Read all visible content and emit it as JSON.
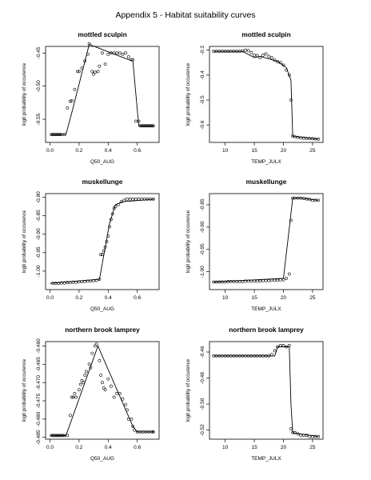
{
  "page_title": "Appendix 5 - Habitat suitability curves",
  "y_axis_label": "logit probability of occurence",
  "chart_data": [
    {
      "type": "line",
      "title": "mottled sculpin",
      "xlabel": "Q50_AUG",
      "ylabel": "logit probability of occurence",
      "xlim": [
        -0.03,
        0.75
      ],
      "ylim": [
        -0.585,
        -0.44
      ],
      "xticks": [
        0.0,
        0.2,
        0.4,
        0.6
      ],
      "xtick_labels": [
        "0.0",
        "0.2",
        "0.4",
        "0.6"
      ],
      "yticks": [
        -0.55,
        -0.5,
        -0.45
      ],
      "ytick_labels": [
        "-0.55",
        "-0.50",
        "-0.45"
      ],
      "grid": false,
      "series": [
        {
          "style": "points",
          "x": [
            0.01,
            0.02,
            0.03,
            0.04,
            0.05,
            0.06,
            0.07,
            0.08,
            0.1,
            0.12,
            0.14,
            0.15,
            0.17,
            0.19,
            0.2,
            0.22,
            0.24,
            0.26,
            0.27,
            0.29,
            0.3,
            0.31,
            0.33,
            0.34,
            0.36,
            0.38,
            0.4,
            0.42,
            0.44,
            0.46,
            0.48,
            0.5,
            0.52,
            0.54,
            0.56,
            0.57,
            0.59,
            0.61,
            0.62,
            0.63,
            0.64,
            0.65,
            0.66,
            0.67,
            0.68,
            0.69,
            0.7,
            0.71
          ],
          "y": [
            -0.573,
            -0.573,
            -0.573,
            -0.573,
            -0.573,
            -0.573,
            -0.573,
            -0.573,
            -0.573,
            -0.533,
            -0.523,
            -0.522,
            -0.505,
            -0.478,
            -0.478,
            -0.473,
            -0.462,
            -0.452,
            -0.436,
            -0.478,
            -0.482,
            -0.479,
            -0.478,
            -0.47,
            -0.45,
            -0.467,
            -0.452,
            -0.45,
            -0.45,
            -0.45,
            -0.45,
            -0.452,
            -0.45,
            -0.456,
            -0.46,
            -0.46,
            -0.553,
            -0.553,
            -0.56,
            -0.56,
            -0.56,
            -0.56,
            -0.56,
            -0.56,
            -0.56,
            -0.56,
            -0.56,
            -0.56
          ]
        },
        {
          "style": "line",
          "x": [
            0.0,
            0.11,
            0.15,
            0.27,
            0.54,
            0.57,
            0.61,
            0.72
          ],
          "y": [
            -0.573,
            -0.573,
            -0.54,
            -0.437,
            -0.46,
            -0.462,
            -0.56,
            -0.56
          ]
        }
      ]
    },
    {
      "type": "line",
      "title": "mottled sculpin",
      "xlabel": "TEMP_JULX",
      "ylabel": "logit probability of occurence",
      "xlim": [
        7.3,
        26.8
      ],
      "ylim": [
        -0.67,
        -0.285
      ],
      "xticks": [
        10,
        15,
        20,
        25
      ],
      "xtick_labels": [
        "10",
        "15",
        "20",
        "25"
      ],
      "yticks": [
        -0.6,
        -0.5,
        -0.4,
        -0.3
      ],
      "ytick_labels": [
        "-0.6",
        "-0.5",
        "-0.4",
        "-0.3"
      ],
      "grid": false,
      "series": [
        {
          "style": "points",
          "x": [
            8,
            8.5,
            9,
            9.5,
            10,
            10.5,
            11,
            11.5,
            12,
            12.5,
            13,
            13.5,
            14,
            14.5,
            15,
            15.5,
            16,
            16.5,
            17,
            17.5,
            18,
            18.5,
            19,
            19.5,
            20,
            20.5,
            21,
            21.3,
            21.6,
            22,
            22.5,
            23,
            23.5,
            24,
            24.5,
            25,
            25.5,
            26
          ],
          "y": [
            -0.305,
            -0.305,
            -0.305,
            -0.305,
            -0.305,
            -0.305,
            -0.305,
            -0.305,
            -0.305,
            -0.305,
            -0.303,
            -0.3,
            -0.302,
            -0.31,
            -0.32,
            -0.322,
            -0.33,
            -0.32,
            -0.315,
            -0.325,
            -0.33,
            -0.34,
            -0.347,
            -0.35,
            -0.36,
            -0.38,
            -0.4,
            -0.5,
            -0.645,
            -0.648,
            -0.65,
            -0.652,
            -0.653,
            -0.654,
            -0.655,
            -0.655,
            -0.656,
            -0.657
          ]
        },
        {
          "style": "line",
          "x": [
            8,
            13,
            15,
            16,
            19,
            20.5,
            21.3,
            21.6,
            26
          ],
          "y": [
            -0.305,
            -0.305,
            -0.33,
            -0.325,
            -0.345,
            -0.37,
            -0.42,
            -0.645,
            -0.657
          ]
        }
      ]
    },
    {
      "type": "line",
      "title": "muskellunge",
      "xlabel": "Q50_AUG",
      "ylabel": "logit probability of occurence",
      "xlim": [
        -0.03,
        0.75
      ],
      "ylim": [
        -1.05,
        -0.79
      ],
      "xticks": [
        0.0,
        0.2,
        0.4,
        0.6
      ],
      "xtick_labels": [
        "0.0",
        "0.2",
        "0.4",
        "0.6"
      ],
      "yticks": [
        -1.0,
        -0.95,
        -0.9,
        -0.85,
        -0.8
      ],
      "ytick_labels": [
        "-1.00",
        "-0.95",
        "-0.90",
        "-0.85",
        "-0.80"
      ],
      "grid": false,
      "series": [
        {
          "style": "points",
          "x": [
            0.02,
            0.04,
            0.06,
            0.08,
            0.1,
            0.12,
            0.14,
            0.16,
            0.18,
            0.2,
            0.22,
            0.24,
            0.26,
            0.28,
            0.3,
            0.32,
            0.34,
            0.35,
            0.36,
            0.37,
            0.38,
            0.39,
            0.4,
            0.41,
            0.42,
            0.43,
            0.44,
            0.45,
            0.47,
            0.49,
            0.51,
            0.53,
            0.55,
            0.57,
            0.59,
            0.61,
            0.63,
            0.65,
            0.67,
            0.69,
            0.71
          ],
          "y": [
            -1.033,
            -1.033,
            -1.033,
            -1.032,
            -1.032,
            -1.031,
            -1.031,
            -1.03,
            -1.03,
            -1.029,
            -1.029,
            -1.028,
            -1.027,
            -1.027,
            -1.026,
            -1.025,
            -1.022,
            -0.955,
            -0.955,
            -0.945,
            -0.935,
            -0.92,
            -0.905,
            -0.88,
            -0.86,
            -0.845,
            -0.83,
            -0.825,
            -0.82,
            -0.812,
            -0.808,
            -0.805,
            -0.805,
            -0.805,
            -0.805,
            -0.805,
            -0.805,
            -0.805,
            -0.805,
            -0.805,
            -0.805
          ]
        },
        {
          "style": "line",
          "x": [
            0.0,
            0.34,
            0.41,
            0.45,
            0.5,
            0.72
          ],
          "y": [
            -1.033,
            -1.022,
            -0.87,
            -0.82,
            -0.812,
            -0.805
          ]
        }
      ]
    },
    {
      "type": "line",
      "title": "muskellunge",
      "xlabel": "TEMP_JULX",
      "ylabel": "logit probability of occurence",
      "xlim": [
        7.3,
        26.8
      ],
      "ylim": [
        -1.04,
        -0.825
      ],
      "xticks": [
        10,
        15,
        20,
        25
      ],
      "xtick_labels": [
        "10",
        "15",
        "20",
        "25"
      ],
      "yticks": [
        -1.0,
        -0.95,
        -0.9,
        -0.85
      ],
      "ytick_labels": [
        "-1.00",
        "-0.95",
        "-0.90",
        "-0.85"
      ],
      "grid": false,
      "series": [
        {
          "style": "points",
          "x": [
            8,
            8.5,
            9,
            9.5,
            10,
            10.5,
            11,
            11.5,
            12,
            12.5,
            13,
            13.5,
            14,
            14.5,
            15,
            15.5,
            16,
            16.5,
            17,
            17.5,
            18,
            18.5,
            19,
            19.5,
            20,
            20.5,
            21,
            21.3,
            21.6,
            22,
            22.5,
            23,
            23.5,
            24,
            24.5,
            25,
            25.5,
            26
          ],
          "y": [
            -1.023,
            -1.023,
            -1.023,
            -1.023,
            -1.023,
            -1.022,
            -1.022,
            -1.022,
            -1.022,
            -1.022,
            -1.022,
            -1.021,
            -1.021,
            -1.021,
            -1.021,
            -1.021,
            -1.021,
            -1.02,
            -1.02,
            -1.02,
            -1.019,
            -1.019,
            -1.019,
            -1.018,
            -1.018,
            -1.015,
            -1.005,
            -0.885,
            -0.835,
            -0.835,
            -0.835,
            -0.835,
            -0.836,
            -0.837,
            -0.838,
            -0.84,
            -0.84,
            -0.84
          ]
        },
        {
          "style": "line",
          "x": [
            8,
            20,
            21.3,
            21.6,
            23,
            26
          ],
          "y": [
            -1.023,
            -1.015,
            -0.87,
            -0.835,
            -0.835,
            -0.84
          ]
        }
      ]
    },
    {
      "type": "line",
      "title": "northern brook lamprey",
      "xlabel": "Q50_AUG",
      "ylabel": "logit probability of occurence",
      "xlim": [
        -0.03,
        0.75
      ],
      "ylim": [
        -0.4855,
        -0.4588
      ],
      "xticks": [
        0.0,
        0.2,
        0.4,
        0.6
      ],
      "xtick_labels": [
        "0.0",
        "0.2",
        "0.4",
        "0.6"
      ],
      "yticks": [
        -0.485,
        -0.48,
        -0.475,
        -0.47,
        -0.465,
        -0.46
      ],
      "ytick_labels": [
        "-0.485",
        "-0.480",
        "-0.475",
        "-0.470",
        "-0.465",
        "-0.460"
      ],
      "grid": false,
      "series": [
        {
          "style": "points",
          "x": [
            0.01,
            0.02,
            0.03,
            0.04,
            0.05,
            0.06,
            0.07,
            0.08,
            0.09,
            0.1,
            0.12,
            0.14,
            0.15,
            0.16,
            0.17,
            0.18,
            0.2,
            0.21,
            0.22,
            0.23,
            0.24,
            0.25,
            0.27,
            0.28,
            0.29,
            0.31,
            0.32,
            0.34,
            0.35,
            0.36,
            0.37,
            0.38,
            0.4,
            0.42,
            0.44,
            0.46,
            0.48,
            0.5,
            0.52,
            0.53,
            0.54,
            0.56,
            0.57,
            0.58,
            0.6,
            0.62,
            0.64,
            0.66,
            0.68,
            0.7,
            0.71
          ],
          "y": [
            -0.4845,
            -0.4845,
            -0.4845,
            -0.4845,
            -0.4845,
            -0.4845,
            -0.4845,
            -0.4845,
            -0.4845,
            -0.4845,
            -0.4845,
            -0.479,
            -0.474,
            -0.474,
            -0.473,
            -0.474,
            -0.472,
            -0.4705,
            -0.4695,
            -0.47,
            -0.468,
            -0.467,
            -0.465,
            -0.466,
            -0.462,
            -0.46,
            -0.4595,
            -0.464,
            -0.468,
            -0.47,
            -0.4715,
            -0.472,
            -0.469,
            -0.471,
            -0.474,
            -0.473,
            -0.473,
            -0.4745,
            -0.476,
            -0.4775,
            -0.48,
            -0.48,
            -0.482,
            -0.483,
            -0.4835,
            -0.4835,
            -0.4835,
            -0.4835,
            -0.4835,
            -0.4835,
            -0.4835
          ]
        },
        {
          "style": "line",
          "x": [
            0.0,
            0.11,
            0.33,
            0.57,
            0.6,
            0.72
          ],
          "y": [
            -0.4845,
            -0.4845,
            -0.46,
            -0.482,
            -0.4835,
            -0.4835
          ]
        }
      ]
    },
    {
      "type": "line",
      "title": "northern brook lamprey",
      "xlabel": "TEMP_JULX",
      "ylabel": "logit probability of occurence",
      "xlim": [
        7.3,
        26.8
      ],
      "ylim": [
        -0.527,
        -0.452
      ],
      "xticks": [
        10,
        15,
        20,
        25
      ],
      "xtick_labels": [
        "10",
        "15",
        "20",
        "25"
      ],
      "yticks": [
        -0.52,
        -0.5,
        -0.48,
        -0.46
      ],
      "ytick_labels": [
        "-0.52",
        "-0.50",
        "-0.48",
        "-0.46"
      ],
      "grid": false,
      "series": [
        {
          "style": "points",
          "x": [
            8,
            8.5,
            9,
            9.5,
            10,
            10.5,
            11,
            11.5,
            12,
            12.5,
            13,
            13.5,
            14,
            14.5,
            15,
            15.5,
            16,
            16.5,
            17,
            17.5,
            18,
            18.5,
            19,
            19.5,
            20,
            20.5,
            21,
            21.3,
            21.6,
            22,
            22.5,
            23,
            23.5,
            24,
            24.5,
            25,
            25.5,
            26
          ],
          "y": [
            -0.463,
            -0.463,
            -0.463,
            -0.463,
            -0.463,
            -0.463,
            -0.463,
            -0.463,
            -0.463,
            -0.463,
            -0.463,
            -0.463,
            -0.463,
            -0.463,
            -0.463,
            -0.463,
            -0.463,
            -0.463,
            -0.463,
            -0.463,
            -0.462,
            -0.459,
            -0.456,
            -0.455,
            -0.455,
            -0.456,
            -0.455,
            -0.519,
            -0.522,
            -0.522,
            -0.523,
            -0.524,
            -0.524,
            -0.524,
            -0.525,
            -0.525,
            -0.525,
            -0.525
          ]
        },
        {
          "style": "line",
          "x": [
            8,
            18.5,
            19,
            21,
            21.3,
            21.6,
            26
          ],
          "y": [
            -0.463,
            -0.463,
            -0.456,
            -0.456,
            -0.5,
            -0.522,
            -0.525
          ]
        }
      ]
    }
  ]
}
